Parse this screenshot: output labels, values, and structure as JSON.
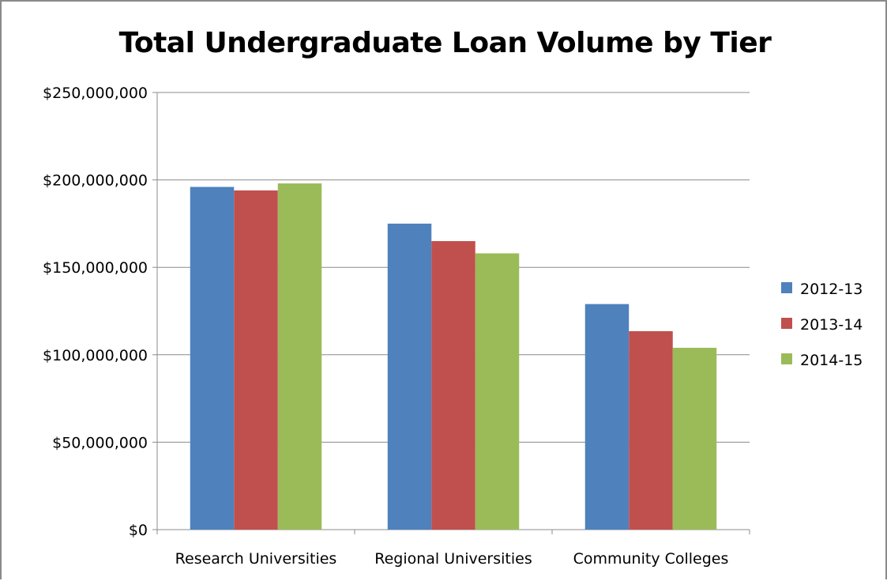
{
  "chart_data": {
    "type": "bar",
    "title": "Total Undergraduate Loan Volume by Tier",
    "xlabel": "",
    "ylabel": "",
    "categories": [
      "Research Universities",
      "Regional Universities",
      "Community Colleges"
    ],
    "series": [
      {
        "name": "2012-13",
        "values": [
          196000000,
          175000000,
          129000000
        ],
        "color": "#4F81BD"
      },
      {
        "name": "2013-14",
        "values": [
          194000000,
          165000000,
          113500000
        ],
        "color": "#C0504D"
      },
      {
        "name": "2014-15",
        "values": [
          198000000,
          158000000,
          104000000
        ],
        "color": "#9BBB59"
      }
    ],
    "ylim": [
      0,
      250000000
    ],
    "y_ticks": [
      0,
      50000000,
      100000000,
      150000000,
      200000000,
      250000000
    ],
    "y_tick_labels": [
      "$0",
      "$50,000,000",
      "$100,000,000",
      "$150,000,000",
      "$200,000,000",
      "$250,000,000"
    ],
    "grid": true,
    "legend_position": "right"
  }
}
